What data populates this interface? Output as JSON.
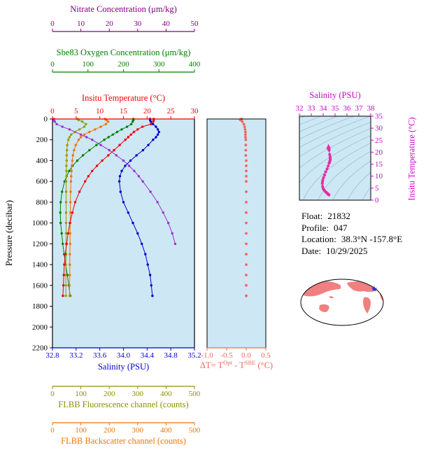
{
  "info": {
    "lines": [
      {
        "label": "Float:",
        "value": "21832"
      },
      {
        "label": "Profile:",
        "value": "047"
      },
      {
        "label": "Location:",
        "value": "38.3°N -157.8°E"
      },
      {
        "label": "Date:",
        "value": "10/29/2025"
      }
    ]
  },
  "map": {
    "marker": "star",
    "marker_color": "#2233cc",
    "land_color": "#f08080",
    "ocean_color": "#ffffff"
  },
  "chart_data": [
    {
      "type": "line",
      "description": "Ocean float depth profiles of multiple variables sharing a pressure axis",
      "plot_background": "#cde7f5",
      "pressure": [
        0,
        10,
        25,
        50,
        75,
        100,
        125,
        150,
        175,
        200,
        250,
        300,
        350,
        400,
        450,
        500,
        550,
        600,
        700,
        800,
        900,
        1000,
        1100,
        1200,
        1300,
        1400,
        1500,
        1600,
        1700
      ],
      "y_axis": {
        "title": "Pressure (decibar)",
        "min": 0,
        "max": 2200,
        "tick_labels": [
          "0",
          "200",
          "400",
          "600",
          "800",
          "1000",
          "1200",
          "1400",
          "1600",
          "1800",
          "2000",
          "2200"
        ],
        "color": "#000000"
      },
      "x_axes": [
        {
          "id": "nitrate",
          "title": "Nitrate Concentration (μm/kg)",
          "color": "#800080",
          "min": 0,
          "max": 50,
          "tick_labels": [
            "0",
            "10",
            "20",
            "30",
            "40",
            "50"
          ],
          "position": "top"
        },
        {
          "id": "oxygen",
          "title": "Sbe83 Oxygen Concentration (μm/kg)",
          "color": "#008000",
          "min": 0,
          "max": 400,
          "tick_labels": [
            "0",
            "100",
            "200",
            "300",
            "400"
          ],
          "position": "top"
        },
        {
          "id": "temperature",
          "title": "Insitu Temperature (°C)",
          "color": "#f00000",
          "min": 0,
          "max": 30,
          "tick_labels": [
            "0",
            "5",
            "10",
            "15",
            "20",
            "25",
            "30"
          ],
          "position": "top"
        },
        {
          "id": "salinity",
          "title": "Salinity (PSU)",
          "color": "#0000cd",
          "min": 32.8,
          "max": 35.2,
          "tick_labels": [
            "32.8",
            "33.2",
            "33.6",
            "34.0",
            "34.4",
            "34.8",
            "35.2"
          ],
          "position": "bottom"
        },
        {
          "id": "fluorescence",
          "title": "FLBB Fluorescence channel (counts)",
          "color": "#8f8f00",
          "min": 0,
          "max": 500,
          "tick_labels": [
            "0",
            "100",
            "200",
            "300",
            "400",
            "500"
          ],
          "position": "bottom"
        },
        {
          "id": "backscatter",
          "title": "FLBB Backscatter channel (counts)",
          "color": "#ee7600",
          "min": 0,
          "max": 500,
          "tick_labels": [
            "0",
            "100",
            "200",
            "300",
            "400",
            "500"
          ],
          "position": "bottom"
        }
      ],
      "series": [
        {
          "name": "Nitrate",
          "axis": "nitrate",
          "color": "#9932cc",
          "values": [
            0.5,
            0.5,
            0.8,
            1.5,
            3.5,
            6,
            8,
            10,
            12,
            14,
            17,
            20,
            22.5,
            25,
            27,
            28.8,
            30.4,
            31.8,
            34.5,
            37,
            39,
            40.8,
            42.2,
            43.2,
            null,
            null,
            null,
            null,
            null
          ]
        },
        {
          "name": "Oxygen",
          "axis": "oxygen",
          "color": "#008000",
          "values": [
            228,
            228,
            226,
            222,
            210,
            195,
            182,
            170,
            158,
            146,
            124,
            104,
            86,
            70,
            57,
            47,
            40,
            34,
            27,
            23,
            22,
            23,
            26,
            29,
            33,
            37,
            42,
            46,
            50
          ]
        },
        {
          "name": "Temperature",
          "axis": "temperature",
          "color": "#f00000",
          "values": [
            21.4,
            21.4,
            21.3,
            20.8,
            19.0,
            18.0,
            17.2,
            16.6,
            16.0,
            15.4,
            14.2,
            13.0,
            11.8,
            10.5,
            9.4,
            8.4,
            7.6,
            6.9,
            5.7,
            4.8,
            4.2,
            3.7,
            3.3,
            3.0,
            2.7,
            2.5,
            2.4,
            2.3,
            2.2
          ]
        },
        {
          "name": "Salinity",
          "axis": "salinity",
          "color": "#0000cd",
          "values": [
            34.45,
            34.45,
            34.46,
            34.5,
            34.55,
            34.58,
            34.6,
            34.58,
            34.55,
            34.5,
            34.42,
            34.33,
            34.22,
            34.12,
            34.03,
            33.97,
            33.94,
            33.93,
            33.95,
            34.0,
            34.08,
            34.16,
            34.24,
            34.31,
            34.37,
            34.41,
            34.45,
            34.47,
            34.49
          ]
        },
        {
          "name": "Fluorescence",
          "axis": "fluorescence",
          "color": "#9a9a00",
          "values": [
            88,
            92,
            105,
            118,
            112,
            95,
            78,
            66,
            60,
            56,
            52,
            51,
            50,
            50,
            49,
            49,
            49,
            48,
            48,
            48,
            48,
            48,
            48,
            48,
            48,
            47,
            47,
            47,
            47
          ]
        },
        {
          "name": "Backscatter",
          "axis": "backscatter",
          "color": "#ee7600",
          "values": [
            185,
            190,
            196,
            188,
            170,
            150,
            130,
            112,
            100,
            92,
            82,
            76,
            72,
            70,
            68,
            67,
            66,
            65,
            64,
            63,
            63,
            62,
            62,
            62,
            61,
            61,
            61,
            60,
            60
          ]
        }
      ]
    },
    {
      "type": "scatter",
      "description": "Temperature difference between optode and SBE sensor vs pressure",
      "title_parts": {
        "prefix": "ΔT= T",
        "sup1": "Opt",
        "mid": " - T",
        "sup2": "SBE",
        "suffix": " (°C)"
      },
      "color": "#f4655c",
      "x_axis": {
        "min": -1.0,
        "max": 0.5,
        "tick_labels": [
          "-1.0",
          "-0.5",
          "0.0",
          "0.5"
        ],
        "color": "#f4655c"
      },
      "values": [
        -0.12,
        -0.15,
        -0.1,
        -0.06,
        -0.04,
        -0.03,
        -0.02,
        -0.02,
        -0.02,
        -0.01,
        -0.01,
        -0.01,
        -0.01,
        0,
        0,
        0,
        0,
        0,
        0,
        0,
        0,
        0,
        0,
        0,
        0,
        0,
        0,
        0,
        0
      ]
    },
    {
      "type": "scatter",
      "description": "T-S diagram with density contours; points derived from the salinity and temperature profiles",
      "color": "#e2309e",
      "axis_color": "#cc00cc",
      "x_axis": {
        "title": "Salinity (PSU)",
        "min": 32,
        "max": 38,
        "tick_labels": [
          "32",
          "33",
          "34",
          "35",
          "36",
          "37",
          "38"
        ]
      },
      "y_axis": {
        "title": "Insitu Temperature (°C)",
        "min": 0,
        "max": 35,
        "tick_labels": [
          "0",
          "5",
          "10",
          "15",
          "20",
          "25",
          "30",
          "35"
        ]
      }
    }
  ]
}
